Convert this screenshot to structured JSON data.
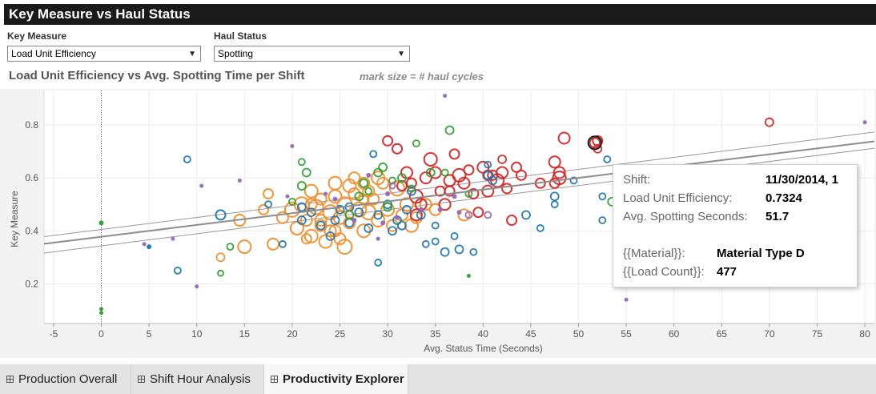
{
  "dashboard": {
    "title": "Key Measure vs Haul Status"
  },
  "filters": {
    "key_measure": {
      "label": "Key Measure",
      "value": "Load Unit Efficiency"
    },
    "haul_status": {
      "label": "Haul Status",
      "value": "Spotting"
    }
  },
  "chart_header": {
    "title": "Load Unit Efficiency vs Avg. Spotting Time per Shift",
    "note": "mark size = # haul cycles"
  },
  "tooltip": {
    "rows": [
      {
        "key": "Shift:",
        "value": "11/30/2014, 1"
      },
      {
        "key": "Load Unit Efficiency:",
        "value": "0.7324"
      },
      {
        "key": "Avg. Spotting Seconds:",
        "value": "51.7"
      },
      {
        "key": "{{Material}}:",
        "value": "Material Type D"
      },
      {
        "key": "{{Load Count}}:",
        "value": "477"
      }
    ]
  },
  "tabs": [
    {
      "label": "Production Overall",
      "active": false
    },
    {
      "label": "Shift Hour Analysis",
      "active": false
    },
    {
      "label": "Productivity Explorer",
      "active": true
    }
  ],
  "colors": {
    "orange": "#f28e2b",
    "red": "#d62728",
    "blue": "#1f77b4",
    "green": "#2ca02c",
    "purple": "#9467bd",
    "trend": "#888888"
  },
  "chart_data": {
    "type": "scatter",
    "xlabel": "Avg. Status Time (Seconds)",
    "ylabel": "Key Measure",
    "xlim": [
      -6,
      81
    ],
    "ylim": [
      0.05,
      0.93
    ],
    "xticks": [
      -5,
      0,
      5,
      10,
      15,
      20,
      25,
      30,
      35,
      40,
      45,
      50,
      55,
      60,
      65,
      70,
      75,
      80
    ],
    "yticks": [
      0.2,
      0.4,
      0.6,
      0.8
    ],
    "trend": {
      "center": [
        [
          -6,
          0.351
        ],
        [
          81,
          0.738
        ]
      ],
      "upper": [
        [
          -6,
          0.378
        ],
        [
          81,
          0.773
        ]
      ],
      "lower": [
        [
          -6,
          0.316
        ],
        [
          81,
          0.712
        ]
      ]
    },
    "highlighted": {
      "x": 51.7,
      "y": 0.7324
    },
    "series": [
      {
        "color": "orange",
        "points": [
          [
            14.5,
            0.44,
            7
          ],
          [
            15,
            0.34,
            8
          ],
          [
            17.5,
            0.54,
            6
          ],
          [
            18,
            0.35,
            7
          ],
          [
            19,
            0.45,
            7
          ],
          [
            20,
            0.48,
            9
          ],
          [
            20.5,
            0.41,
            8
          ],
          [
            21,
            0.5,
            9
          ],
          [
            21.5,
            0.44,
            7
          ],
          [
            22,
            0.55,
            8
          ],
          [
            22,
            0.38,
            8
          ],
          [
            22.5,
            0.49,
            9
          ],
          [
            23,
            0.52,
            7
          ],
          [
            23,
            0.42,
            7
          ],
          [
            23.5,
            0.36,
            8
          ],
          [
            24,
            0.47,
            9
          ],
          [
            24.5,
            0.53,
            8
          ],
          [
            24.5,
            0.4,
            7
          ],
          [
            25,
            0.45,
            8
          ],
          [
            25.5,
            0.5,
            9
          ],
          [
            25.5,
            0.34,
            9
          ],
          [
            26,
            0.57,
            8
          ],
          [
            26,
            0.43,
            7
          ],
          [
            26.5,
            0.54,
            7
          ],
          [
            27,
            0.48,
            9
          ],
          [
            27.5,
            0.4,
            8
          ],
          [
            28,
            0.55,
            7
          ],
          [
            28,
            0.47,
            9
          ],
          [
            28.5,
            0.52,
            7
          ],
          [
            29,
            0.44,
            8
          ],
          [
            29.5,
            0.58,
            7
          ],
          [
            30,
            0.48,
            8
          ],
          [
            30.5,
            0.42,
            7
          ],
          [
            31,
            0.56,
            9
          ],
          [
            31.5,
            0.46,
            7
          ],
          [
            32,
            0.5,
            8
          ],
          [
            32.5,
            0.42,
            8
          ],
          [
            33,
            0.45,
            7
          ],
          [
            34,
            0.5,
            7
          ],
          [
            35,
            0.48,
            7
          ],
          [
            24.5,
            0.58,
            8
          ],
          [
            26.5,
            0.6,
            7
          ],
          [
            27.5,
            0.58,
            7
          ],
          [
            29,
            0.6,
            8
          ],
          [
            24,
            0.4,
            7
          ],
          [
            21.5,
            0.37,
            6
          ],
          [
            23,
            0.44,
            7
          ],
          [
            22,
            0.5,
            7
          ],
          [
            25,
            0.37,
            7
          ],
          [
            27.5,
            0.52,
            6
          ],
          [
            38,
            0.46,
            7
          ],
          [
            12.5,
            0.3,
            5
          ],
          [
            17,
            0.48,
            6
          ]
        ]
      },
      {
        "color": "red",
        "points": [
          [
            30,
            0.74,
            6
          ],
          [
            31,
            0.71,
            6
          ],
          [
            32,
            0.62,
            7
          ],
          [
            32.5,
            0.58,
            6
          ],
          [
            33,
            0.53,
            8
          ],
          [
            33.5,
            0.5,
            7
          ],
          [
            34,
            0.6,
            7
          ],
          [
            34.5,
            0.67,
            8
          ],
          [
            35,
            0.62,
            7
          ],
          [
            35.5,
            0.55,
            6
          ],
          [
            36,
            0.5,
            7
          ],
          [
            36.5,
            0.59,
            7
          ],
          [
            37,
            0.69,
            6
          ],
          [
            37.5,
            0.61,
            8
          ],
          [
            38,
            0.58,
            7
          ],
          [
            38.5,
            0.63,
            6
          ],
          [
            39,
            0.54,
            6
          ],
          [
            39.5,
            0.47,
            6
          ],
          [
            40,
            0.64,
            7
          ],
          [
            40.5,
            0.55,
            7
          ],
          [
            41,
            0.61,
            6
          ],
          [
            41.5,
            0.59,
            8
          ],
          [
            42,
            0.62,
            7
          ],
          [
            42,
            0.67,
            5
          ],
          [
            42.5,
            0.56,
            6
          ],
          [
            43,
            0.44,
            6
          ],
          [
            43.5,
            0.64,
            6
          ],
          [
            44,
            0.61,
            6
          ],
          [
            47.5,
            0.66,
            7
          ],
          [
            47.5,
            0.58,
            6
          ],
          [
            48,
            0.62,
            7
          ],
          [
            48,
            0.6,
            8
          ],
          [
            48.5,
            0.75,
            7
          ],
          [
            52,
            0.74,
            6
          ],
          [
            52,
            0.71,
            5
          ],
          [
            70,
            0.81,
            5
          ],
          [
            31.5,
            0.57,
            6
          ],
          [
            33,
            0.46,
            7
          ],
          [
            36.5,
            0.55,
            6
          ],
          [
            40.5,
            0.61,
            6
          ],
          [
            46,
            0.58,
            6
          ]
        ]
      },
      {
        "color": "blue",
        "points": [
          [
            12.5,
            0.46,
            6
          ],
          [
            9,
            0.67,
            4
          ],
          [
            8,
            0.25,
            4
          ],
          [
            5,
            0.34,
            3
          ],
          [
            17.5,
            0.5,
            4
          ],
          [
            19,
            0.35,
            4
          ],
          [
            21,
            0.44,
            5
          ],
          [
            22,
            0.47,
            5
          ],
          [
            23,
            0.42,
            5
          ],
          [
            24,
            0.38,
            5
          ],
          [
            25,
            0.48,
            5
          ],
          [
            26,
            0.43,
            5
          ],
          [
            27,
            0.47,
            5
          ],
          [
            28,
            0.41,
            5
          ],
          [
            29,
            0.46,
            5
          ],
          [
            30,
            0.5,
            5
          ],
          [
            31,
            0.44,
            5
          ],
          [
            32,
            0.48,
            5
          ],
          [
            29,
            0.28,
            4
          ],
          [
            30.5,
            0.4,
            5
          ],
          [
            33.5,
            0.46,
            5
          ],
          [
            34,
            0.35,
            4
          ],
          [
            35,
            0.36,
            4
          ],
          [
            37,
            0.38,
            4
          ],
          [
            36,
            0.32,
            5
          ],
          [
            37.5,
            0.33,
            5
          ],
          [
            39,
            0.32,
            4
          ],
          [
            40.5,
            0.61,
            5
          ],
          [
            40.5,
            0.65,
            4
          ],
          [
            41,
            0.59,
            5
          ],
          [
            44.5,
            0.46,
            5
          ],
          [
            46,
            0.41,
            4
          ],
          [
            47.5,
            0.53,
            5
          ],
          [
            47.5,
            0.5,
            4
          ],
          [
            49.5,
            0.59,
            4
          ],
          [
            52.5,
            0.44,
            4
          ],
          [
            52.5,
            0.53,
            4
          ],
          [
            53,
            0.67,
            4
          ],
          [
            28.5,
            0.69,
            4
          ],
          [
            31.5,
            0.42,
            5
          ],
          [
            26,
            0.49,
            5
          ],
          [
            24.5,
            0.44,
            5
          ],
          [
            21,
            0.49,
            5
          ],
          [
            35,
            0.42,
            4
          ],
          [
            32.5,
            0.55,
            5
          ]
        ]
      },
      {
        "color": "green",
        "points": [
          [
            0,
            0.43,
            3
          ],
          [
            0,
            0.105,
            2.5
          ],
          [
            0,
            0.09,
            2.5
          ],
          [
            12.5,
            0.24,
            3.5
          ],
          [
            13.5,
            0.34,
            4
          ],
          [
            21,
            0.57,
            5
          ],
          [
            21.5,
            0.62,
            5
          ],
          [
            21,
            0.66,
            4
          ],
          [
            27,
            0.53,
            5
          ],
          [
            27.5,
            0.58,
            5
          ],
          [
            28,
            0.55,
            4
          ],
          [
            29,
            0.62,
            5
          ],
          [
            29.5,
            0.64,
            5
          ],
          [
            30,
            0.49,
            5
          ],
          [
            31.5,
            0.6,
            5
          ],
          [
            32.5,
            0.56,
            4
          ],
          [
            33,
            0.73,
            4
          ],
          [
            34.5,
            0.62,
            5
          ],
          [
            36.5,
            0.78,
            5
          ],
          [
            36,
            0.62,
            4
          ],
          [
            38.5,
            0.54,
            4
          ],
          [
            53.5,
            0.51,
            5
          ],
          [
            38.5,
            0.23,
            2.5
          ],
          [
            30.5,
            0.59,
            4
          ],
          [
            26,
            0.46,
            5
          ],
          [
            20,
            0.51,
            4
          ]
        ]
      },
      {
        "color": "purple",
        "points": [
          [
            4.5,
            0.35,
            2.5
          ],
          [
            7.5,
            0.37,
            2.5
          ],
          [
            10,
            0.19,
            2.5
          ],
          [
            10.5,
            0.57,
            2.5
          ],
          [
            14.5,
            0.59,
            2.5
          ],
          [
            19.5,
            0.53,
            2.5
          ],
          [
            20,
            0.72,
            2.5
          ],
          [
            23.5,
            0.54,
            2.5
          ],
          [
            28,
            0.61,
            3
          ],
          [
            30.5,
            0.57,
            3.5
          ],
          [
            29.5,
            0.43,
            3
          ],
          [
            29,
            0.37,
            2.5
          ],
          [
            30,
            0.54,
            3
          ],
          [
            31,
            0.45,
            3
          ],
          [
            33.5,
            0.48,
            3
          ],
          [
            35.5,
            0.48,
            3
          ],
          [
            36,
            0.91,
            2.5
          ],
          [
            37,
            0.53,
            3
          ],
          [
            37.5,
            0.47,
            3
          ],
          [
            38.5,
            0.46,
            4
          ],
          [
            40.5,
            0.46,
            4
          ],
          [
            55,
            0.14,
            2.5
          ],
          [
            80,
            0.81,
            2.5
          ],
          [
            26.5,
            0.44,
            3
          ],
          [
            24.5,
            0.52,
            3
          ]
        ]
      }
    ]
  }
}
